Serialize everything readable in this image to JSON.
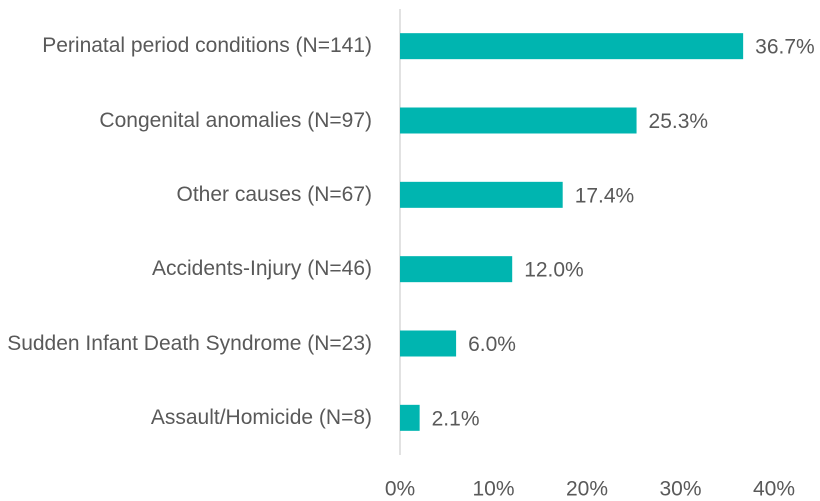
{
  "chart_data": {
    "type": "barh",
    "categories": [
      "Perinatal period conditions (N=141)",
      "Congenital anomalies (N=97)",
      "Other causes (N=67)",
      "Accidents-Injury (N=46)",
      "Sudden Infant Death Syndrome (N=23)",
      "Assault/Homicide (N=8)"
    ],
    "values": [
      36.7,
      25.3,
      17.4,
      12.0,
      6.0,
      2.1
    ],
    "value_labels": [
      "36.7%",
      "25.3%",
      "17.4%",
      "12.0%",
      "6.0%",
      "2.1%"
    ],
    "color": "#00b5b0",
    "xlim": [
      0,
      40
    ],
    "xticks": [
      {
        "value": 0,
        "label": "0%"
      },
      {
        "value": 10,
        "label": "10%"
      },
      {
        "value": 20,
        "label": "20%"
      },
      {
        "value": 30,
        "label": "30%"
      },
      {
        "value": 40,
        "label": "40%"
      }
    ],
    "grid": false
  }
}
